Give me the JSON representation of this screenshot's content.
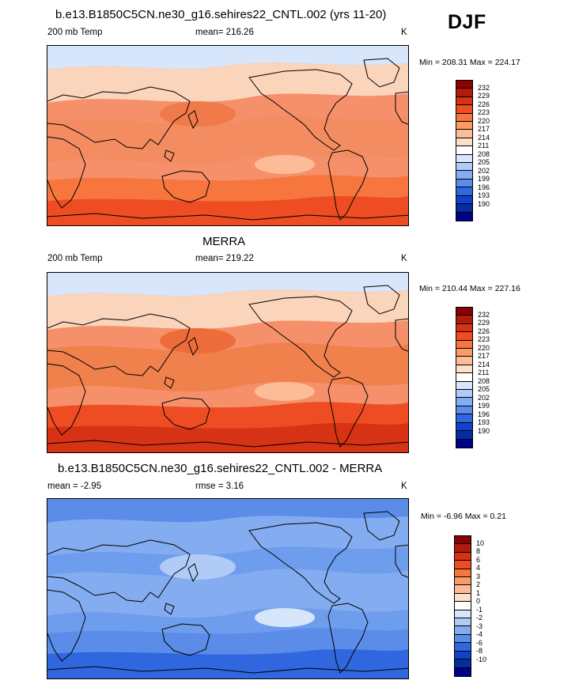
{
  "season": "DJF",
  "panels": [
    {
      "title": "b.e13.B1850C5CN.ne30_g16.sehires22_CNTL.002 (yrs 11-20)",
      "left_label": "200 mb Temp",
      "stat": "mean= 216.26",
      "units": "K",
      "minmax": "Min = 208.31 Max = 224.17",
      "colorbar_labels": [
        "232",
        "229",
        "226",
        "223",
        "220",
        "217",
        "214",
        "211",
        "208",
        "205",
        "202",
        "199",
        "196",
        "193",
        "190"
      ],
      "colorbar_colors": [
        "#8b0000",
        "#b01c09",
        "#d73213",
        "#ee4d23",
        "#f6763d",
        "#fa9a69",
        "#fcbc98",
        "#fde0c8",
        "#ffffff",
        "#d7e6fb",
        "#b0ccf6",
        "#84acf0",
        "#5a8ce8",
        "#3167de",
        "#1043cc",
        "#062c9e",
        "#00008b"
      ],
      "fill": {
        "base": "#f6906a",
        "band": "#f38c61",
        "south": "#ee4d23",
        "south2": "#f6763d",
        "north": "#fbd4bc",
        "arctic": "#d7e6fb",
        "warm": "#f07a4a",
        "cool": "#fcbc98"
      }
    },
    {
      "title": "MERRA",
      "left_label": "200 mb Temp",
      "stat": "mean= 219.22",
      "units": "K",
      "minmax": "Min = 210.44 Max = 227.16",
      "colorbar_labels": [
        "232",
        "229",
        "226",
        "223",
        "220",
        "217",
        "214",
        "211",
        "208",
        "205",
        "202",
        "199",
        "196",
        "193",
        "190"
      ],
      "colorbar_colors": [
        "#8b0000",
        "#b01c09",
        "#d73213",
        "#ee4d23",
        "#f6763d",
        "#fa9a69",
        "#fcbc98",
        "#fde0c8",
        "#ffffff",
        "#d7e6fb",
        "#b0ccf6",
        "#84acf0",
        "#5a8ce8",
        "#3167de",
        "#1043cc",
        "#062c9e",
        "#00008b"
      ],
      "fill": {
        "base": "#f6906a",
        "band": "#f0804c",
        "south": "#d73213",
        "south2": "#ee4d23",
        "north": "#fbd4bc",
        "arctic": "#d7e6fb",
        "warm": "#ec6d3b",
        "cool": "#fcbc98"
      }
    },
    {
      "title": "b.e13.B1850C5CN.ne30_g16.sehires22_CNTL.002 - MERRA",
      "left_label": "mean =  -2.95",
      "stat": "rmse =   3.16",
      "units": "K",
      "minmax": "Min =  -6.96 Max =   0.21",
      "colorbar_labels": [
        "10",
        "8",
        "6",
        "4",
        "3",
        "2",
        "1",
        "0",
        "-1",
        "-2",
        "-3",
        "-4",
        "-6",
        "-8",
        "-10"
      ],
      "colorbar_colors": [
        "#8b0000",
        "#b01c09",
        "#d73213",
        "#ee4d23",
        "#f6763d",
        "#fa9a69",
        "#fcbc98",
        "#fde0c8",
        "#ffffff",
        "#d7e6fb",
        "#b0ccf6",
        "#84acf0",
        "#5a8ce8",
        "#3167de",
        "#1043cc",
        "#062c9e",
        "#00008b"
      ],
      "fill": {
        "base": "#6f9ded",
        "band": "#84acf0",
        "south": "#3167de",
        "south2": "#5a8ce8",
        "north": "#84acf0",
        "arctic": "#5a8ce8",
        "warm": "#b0ccf6",
        "cool": "#d7e6fb"
      }
    }
  ]
}
